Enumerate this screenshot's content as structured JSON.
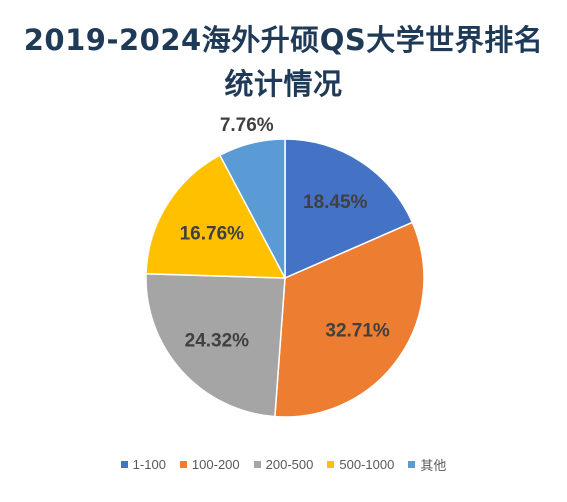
{
  "chart_data": {
    "type": "pie",
    "title_line1": "2019-2024海外升硕QS大学世界排名",
    "title_line2": "统计情况",
    "categories": [
      "1-100",
      "100-200",
      "200-500",
      "500-1000",
      "其他"
    ],
    "values": [
      18.45,
      32.71,
      24.32,
      16.76,
      7.76
    ],
    "labels": [
      "18.45%",
      "32.71%",
      "24.32%",
      "16.76%",
      "7.76%"
    ],
    "colors": [
      "#4472C4",
      "#ED7D31",
      "#A5A5A5",
      "#FFC000",
      "#5B9BD5"
    ],
    "legend_position": "bottom"
  }
}
